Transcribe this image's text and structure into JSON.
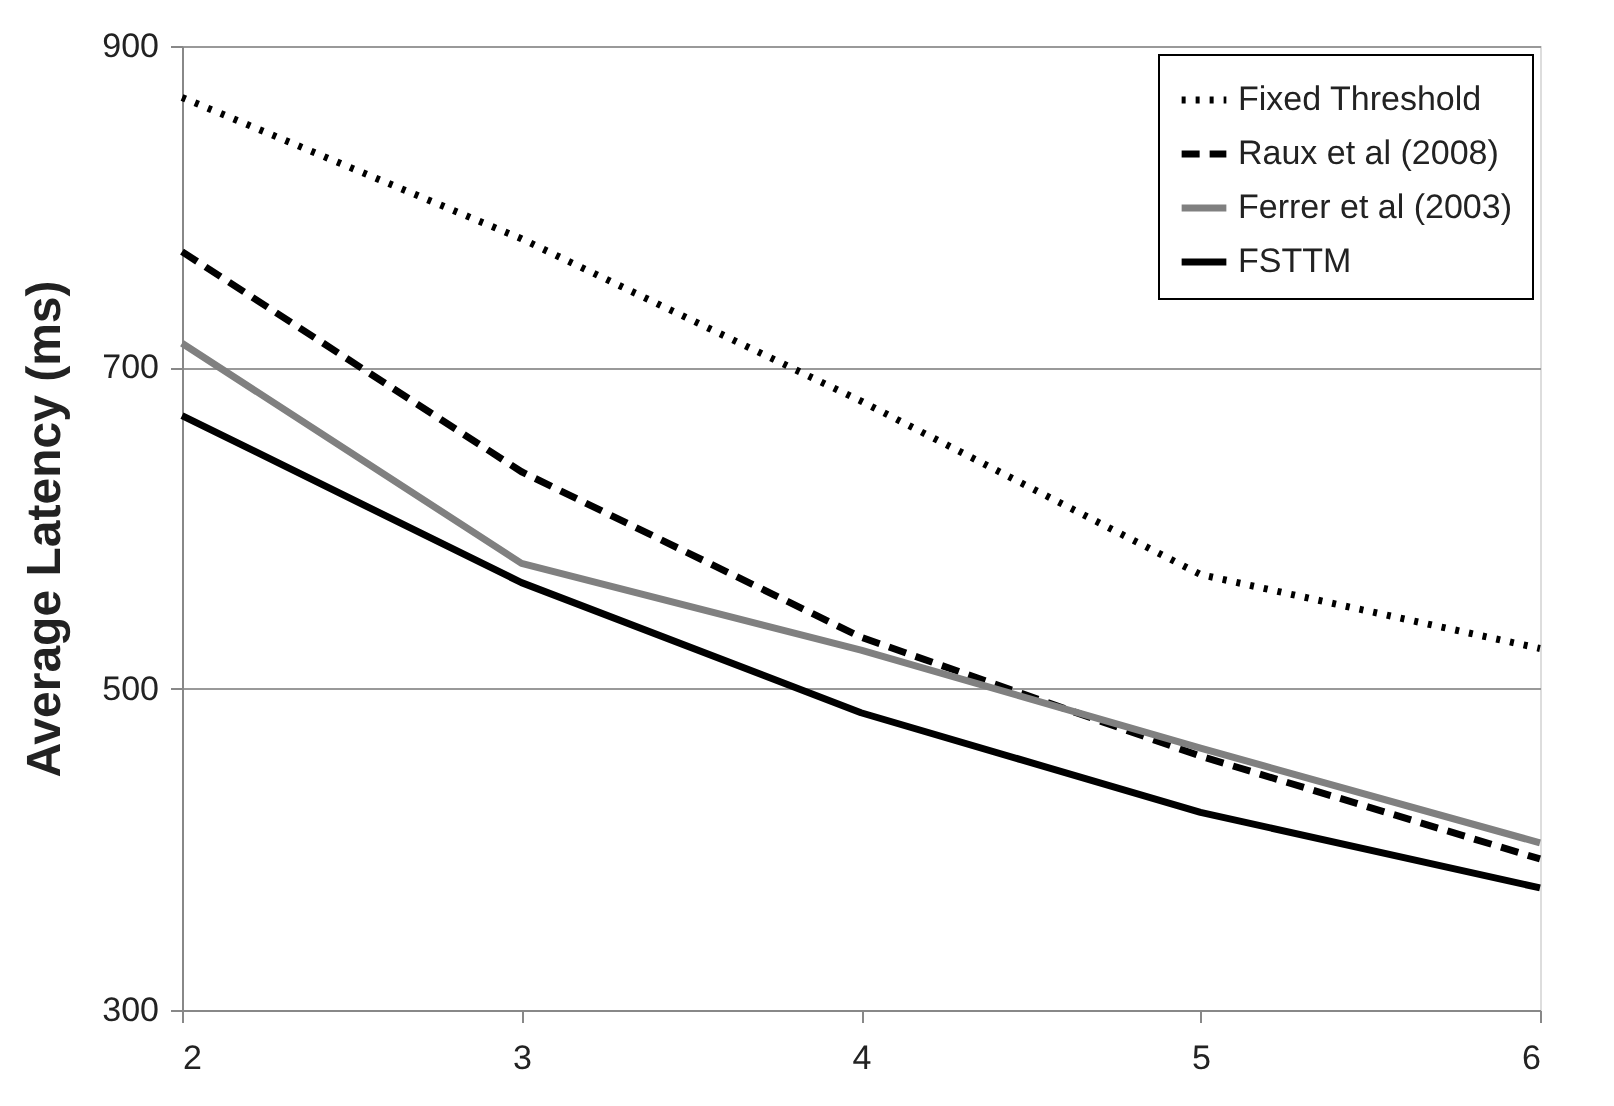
{
  "chart_data": {
    "type": "line",
    "ylabel": "Average Latency (ms)",
    "x": [
      2,
      3,
      4,
      5,
      6
    ],
    "series": [
      {
        "name": "Fixed Threshold",
        "color": "#000000",
        "line_style": "dotted",
        "values": [
          868,
          780,
          679,
          571,
          525
        ]
      },
      {
        "name": "Raux et al (2008)",
        "color": "#000000",
        "line_style": "dashed",
        "values": [
          772,
          635,
          532,
          458,
          394
        ]
      },
      {
        "name": "Ferrer et al (2003)",
        "color": "#808080",
        "line_style": "solid",
        "values": [
          715,
          578,
          524,
          463,
          404
        ]
      },
      {
        "name": "FSTTM",
        "color": "#000000",
        "line_style": "solid",
        "values": [
          670,
          566,
          485,
          423,
          376
        ]
      }
    ],
    "xlim": [
      2,
      6
    ],
    "xticks": [
      2,
      3,
      4,
      5,
      6
    ],
    "ylim": [
      300,
      900
    ],
    "yticks": [
      300,
      500,
      700,
      900
    ],
    "grid": "y",
    "legend": "top right"
  }
}
